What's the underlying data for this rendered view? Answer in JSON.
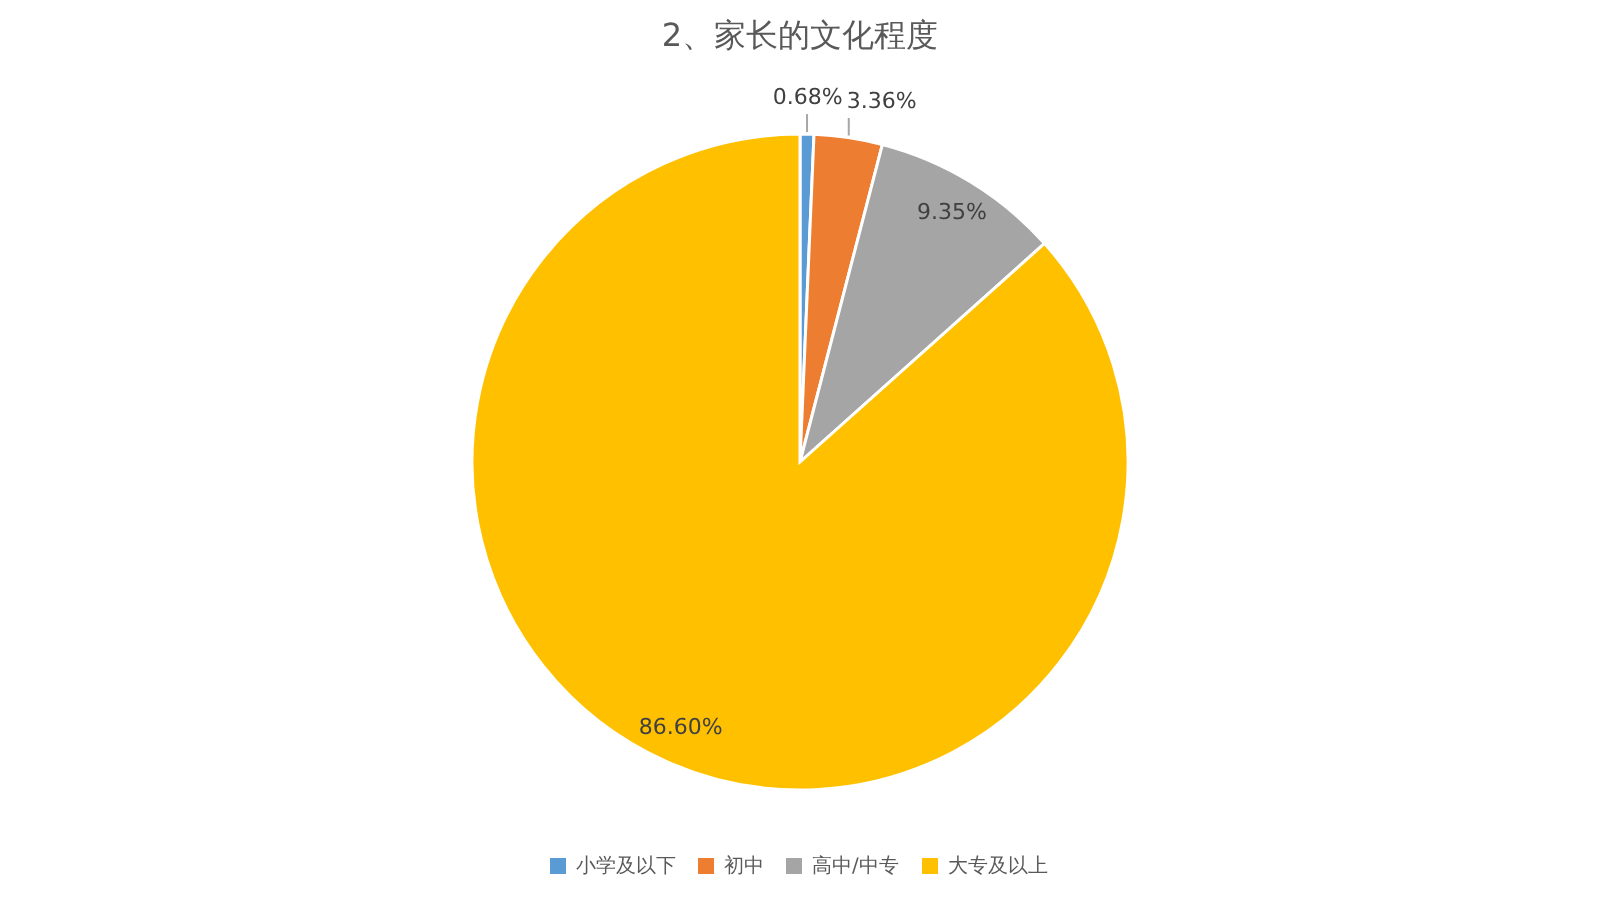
{
  "chart_data": {
    "type": "pie",
    "title": "2、家长的文化程度",
    "categories": [
      "小学及以下",
      "初中",
      "高中/中专",
      "大专及以上"
    ],
    "values": [
      0.68,
      3.36,
      9.35,
      86.6
    ],
    "colors": [
      "#5b9bd5",
      "#ed7d31",
      "#a5a5a5",
      "#ffc000"
    ],
    "value_labels": [
      "0.68%",
      "3.36%",
      "9.35%",
      "86.60%"
    ],
    "legend": "bottom"
  }
}
